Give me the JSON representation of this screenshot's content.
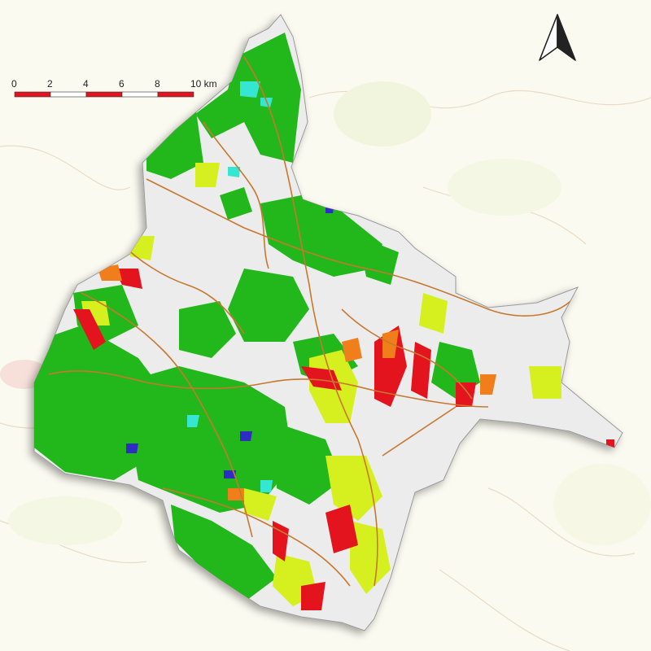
{
  "scale_bar": {
    "labels": [
      "0",
      "2",
      "4",
      "6",
      "8",
      "10 km"
    ],
    "colors": [
      "#e0141e",
      "#ffffff"
    ]
  },
  "north_arrow": {
    "icon": "north-arrow-icon"
  },
  "legend_colors": {
    "forest": "#22b81b",
    "light_vegetation": "#d6ef1f",
    "high_risk": "#e3141e",
    "medium_risk": "#f07f1b",
    "water": "#2f2cc4",
    "cyan": "#35e6d3",
    "roads": "#c8782e",
    "land_outside": "#f3f0da",
    "land_inside": "#e9e9e9"
  }
}
